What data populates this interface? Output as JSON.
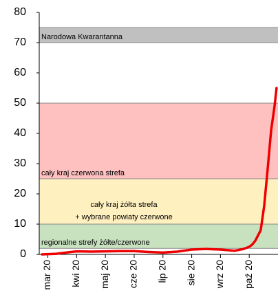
{
  "chart_data": {
    "type": "line",
    "xlim": [
      -0.3,
      8
    ],
    "ylim": [
      0,
      80
    ],
    "yticks": [
      0,
      10,
      20,
      30,
      40,
      50,
      60,
      70,
      80
    ],
    "xticks": [
      {
        "value": 0,
        "label": "mar 20"
      },
      {
        "value": 1,
        "label": "kwi 20"
      },
      {
        "value": 2,
        "label": "maj 20"
      },
      {
        "value": 3,
        "label": "cze 20"
      },
      {
        "value": 4,
        "label": "lip 20"
      },
      {
        "value": 5,
        "label": "sie 20"
      },
      {
        "value": 6,
        "label": "wrz 20"
      },
      {
        "value": 7,
        "label": "paź 20"
      }
    ],
    "bands": [
      {
        "from": 70,
        "to": 75,
        "color": "#c0c0c0",
        "label": [
          "Narodowa Kwarantanna"
        ]
      },
      {
        "from": 25,
        "to": 50,
        "color": "#ffc0c0",
        "label": [
          "cały kraj czerwona strefa"
        ]
      },
      {
        "from": 10,
        "to": 25,
        "color": "#fff0c0",
        "label": [
          "cały kraj żółta strefa",
          "+ wybrane powiaty czerwone"
        ]
      },
      {
        "from": 2,
        "to": 10,
        "color": "#c8e2c0",
        "label": [
          "regionalne strefy żółte/czerwone"
        ]
      }
    ],
    "series": [
      {
        "color": "#ee0000",
        "x": [
          -0.2,
          0.3,
          0.8,
          1.0,
          1.5,
          2.0,
          2.5,
          3.0,
          3.5,
          4.0,
          4.5,
          5.0,
          5.5,
          6.0,
          6.5,
          6.8,
          7.0,
          7.1,
          7.21,
          7.4,
          7.52,
          7.64,
          7.76,
          7.88,
          7.95
        ],
        "values": [
          0,
          0.2,
          0.8,
          1.0,
          0.9,
          1.0,
          1.1,
          1.1,
          0.8,
          0.6,
          0.9,
          1.6,
          1.8,
          1.6,
          1.2,
          1.8,
          2.5,
          3.2,
          4.5,
          8,
          16,
          28,
          41,
          49,
          55
        ]
      }
    ]
  }
}
